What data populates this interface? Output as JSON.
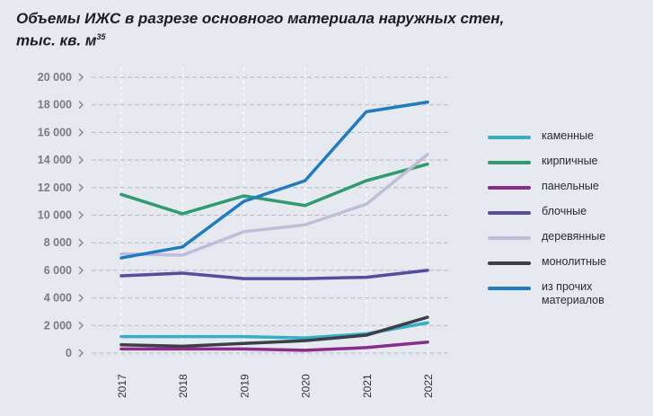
{
  "chart_data": {
    "type": "line",
    "title": "Объемы ИЖС в разрезе основного материала наружных стен,",
    "title_line2": "тыс. кв. м",
    "title_sup": "35",
    "x": [
      "2017",
      "2018",
      "2019",
      "2020",
      "2021",
      "2022"
    ],
    "ylim": [
      0,
      20000
    ],
    "yticks": [
      0,
      2000,
      4000,
      6000,
      8000,
      10000,
      12000,
      14000,
      16000,
      18000,
      20000
    ],
    "ytick_labels": [
      "0",
      "2 000",
      "4 000",
      "6 000",
      "8 000",
      "10 000",
      "12 000",
      "14 000",
      "16 000",
      "18 000",
      "20 000"
    ],
    "grid": true,
    "legend_position": "right",
    "series": [
      {
        "name": "каменные",
        "color": "#35aec6",
        "values": [
          1200,
          1200,
          1200,
          1100,
          1400,
          2200
        ]
      },
      {
        "name": "кирпичные",
        "color": "#2e9c70",
        "values": [
          11500,
          10100,
          11400,
          10700,
          12500,
          13700
        ]
      },
      {
        "name": "панельные",
        "color": "#8a2d8a",
        "values": [
          300,
          300,
          300,
          200,
          400,
          800
        ]
      },
      {
        "name": "блочные",
        "color": "#5a4b9e",
        "values": [
          5600,
          5800,
          5400,
          5400,
          5500,
          6000
        ]
      },
      {
        "name": "деревянные",
        "color": "#bfbdd8",
        "values": [
          7200,
          7100,
          8800,
          9300,
          10800,
          14400
        ]
      },
      {
        "name": "монолитные",
        "color": "#3c3e48",
        "values": [
          600,
          500,
          700,
          900,
          1300,
          2600
        ]
      },
      {
        "name": "из прочих материалов",
        "color": "#1f7cc0",
        "values": [
          6900,
          7700,
          11000,
          12500,
          17500,
          18200
        ]
      }
    ]
  }
}
